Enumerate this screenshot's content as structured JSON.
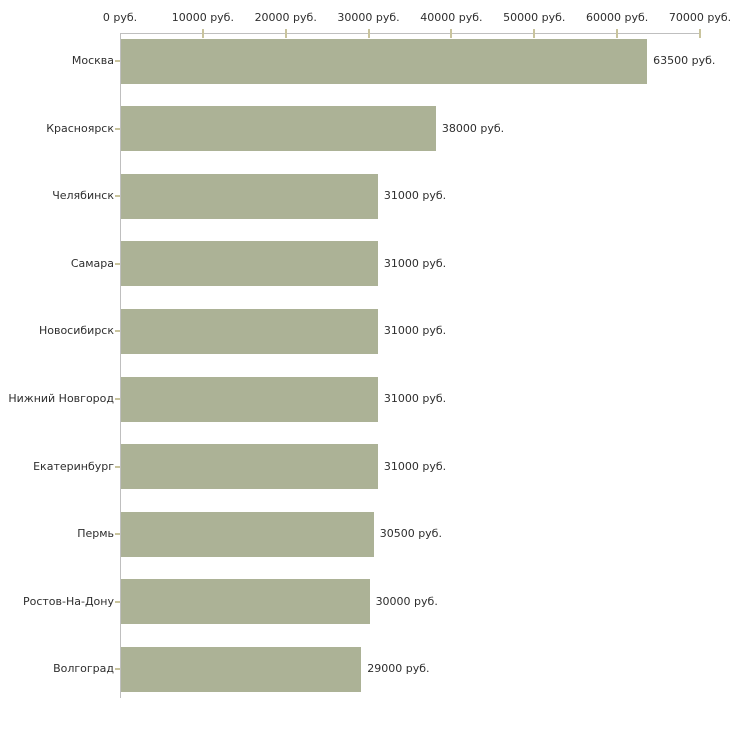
{
  "chart_data": {
    "type": "bar",
    "orientation": "horizontal",
    "title": "",
    "xlabel": "",
    "ylabel": "",
    "unit": "руб.",
    "categories": [
      "Москва",
      "Красноярск",
      "Челябинск",
      "Самара",
      "Новосибирск",
      "Нижний Новгород",
      "Екатеринбург",
      "Пермь",
      "Ростов-На-Дону",
      "Волгоград"
    ],
    "values": [
      63500,
      38000,
      31000,
      31000,
      31000,
      31000,
      31000,
      30500,
      30000,
      29000
    ],
    "value_labels": [
      "63500 руб.",
      "38000 руб.",
      "31000 руб.",
      "31000 руб.",
      "31000 руб.",
      "31000 руб.",
      "31000 руб.",
      "30500 руб.",
      "30000 руб.",
      "29000 руб."
    ],
    "xlim": [
      0,
      70000
    ],
    "x_ticks": [
      0,
      10000,
      20000,
      30000,
      40000,
      50000,
      60000,
      70000
    ],
    "x_tick_labels": [
      "0 руб.",
      "10000 руб.",
      "20000 руб.",
      "30000 руб.",
      "40000 руб.",
      "50000 руб.",
      "60000 руб.",
      "70000 руб."
    ],
    "grid": false,
    "legend": null,
    "tick_position": "top",
    "colors": {
      "bar": "#acb296",
      "axis": "#bfbfbf",
      "tick": "#c9c49d",
      "text": "#2e2e2e",
      "background": "#ffffff"
    }
  }
}
